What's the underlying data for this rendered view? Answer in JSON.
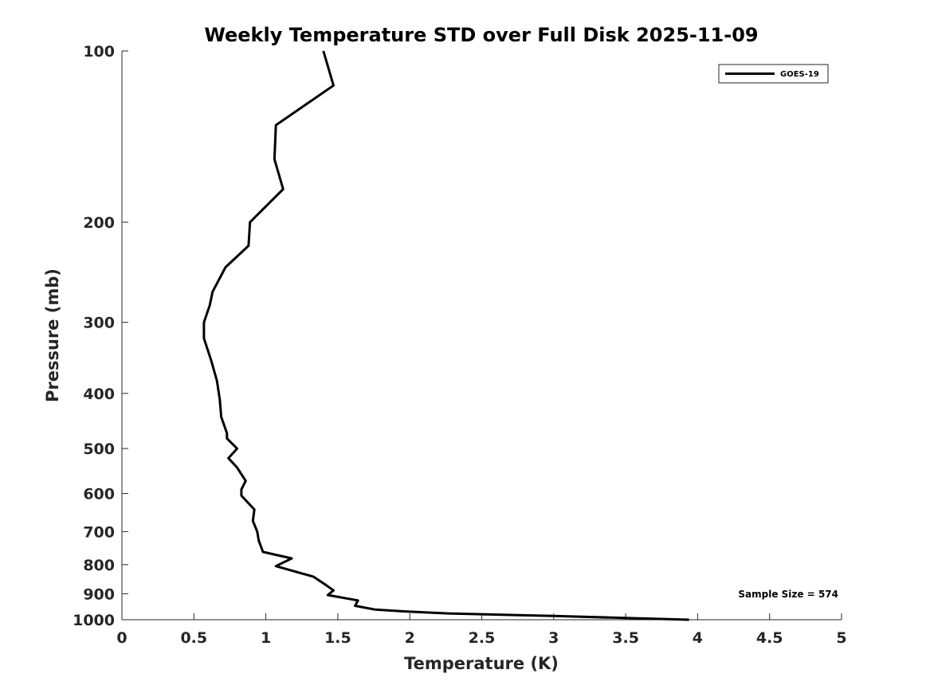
{
  "chart_data": {
    "type": "line",
    "title": "Weekly Temperature STD over Full Disk 2025-11-09",
    "xlabel": "Temperature (K)",
    "ylabel": "Pressure (mb)",
    "xlim": [
      0,
      5
    ],
    "ylim": [
      100,
      1000
    ],
    "y_scale": "log",
    "y_inverted": true,
    "x_ticks": [
      "0",
      "0.5",
      "1",
      "1.5",
      "2",
      "2.5",
      "3",
      "3.5",
      "4",
      "4.5",
      "5"
    ],
    "y_ticks": [
      "100",
      "200",
      "300",
      "400",
      "500",
      "600",
      "700",
      "800",
      "900",
      "1000"
    ],
    "legend_position": "top-right",
    "annotation": "Sample Size = 574",
    "series": [
      {
        "name": "GOES-19",
        "color": "#000000",
        "points": [
          [
            1.4,
            100
          ],
          [
            1.47,
            115
          ],
          [
            1.07,
            135
          ],
          [
            1.06,
            155
          ],
          [
            1.12,
            175
          ],
          [
            0.89,
            200
          ],
          [
            0.88,
            220
          ],
          [
            0.72,
            240
          ],
          [
            0.63,
            265
          ],
          [
            0.61,
            280
          ],
          [
            0.57,
            300
          ],
          [
            0.57,
            320
          ],
          [
            0.62,
            350
          ],
          [
            0.66,
            380
          ],
          [
            0.68,
            410
          ],
          [
            0.69,
            440
          ],
          [
            0.73,
            470
          ],
          [
            0.73,
            480
          ],
          [
            0.8,
            500
          ],
          [
            0.74,
            520
          ],
          [
            0.8,
            540
          ],
          [
            0.86,
            570
          ],
          [
            0.83,
            590
          ],
          [
            0.83,
            605
          ],
          [
            0.92,
            640
          ],
          [
            0.91,
            670
          ],
          [
            0.94,
            700
          ],
          [
            0.95,
            725
          ],
          [
            0.98,
            760
          ],
          [
            1.18,
            780
          ],
          [
            1.07,
            805
          ],
          [
            1.33,
            840
          ],
          [
            1.42,
            870
          ],
          [
            1.47,
            888
          ],
          [
            1.43,
            905
          ],
          [
            1.64,
            925
          ],
          [
            1.62,
            945
          ],
          [
            1.76,
            960
          ],
          [
            2.0,
            968
          ],
          [
            2.27,
            975
          ],
          [
            3.0,
            985
          ],
          [
            3.94,
            1000
          ]
        ]
      }
    ]
  }
}
